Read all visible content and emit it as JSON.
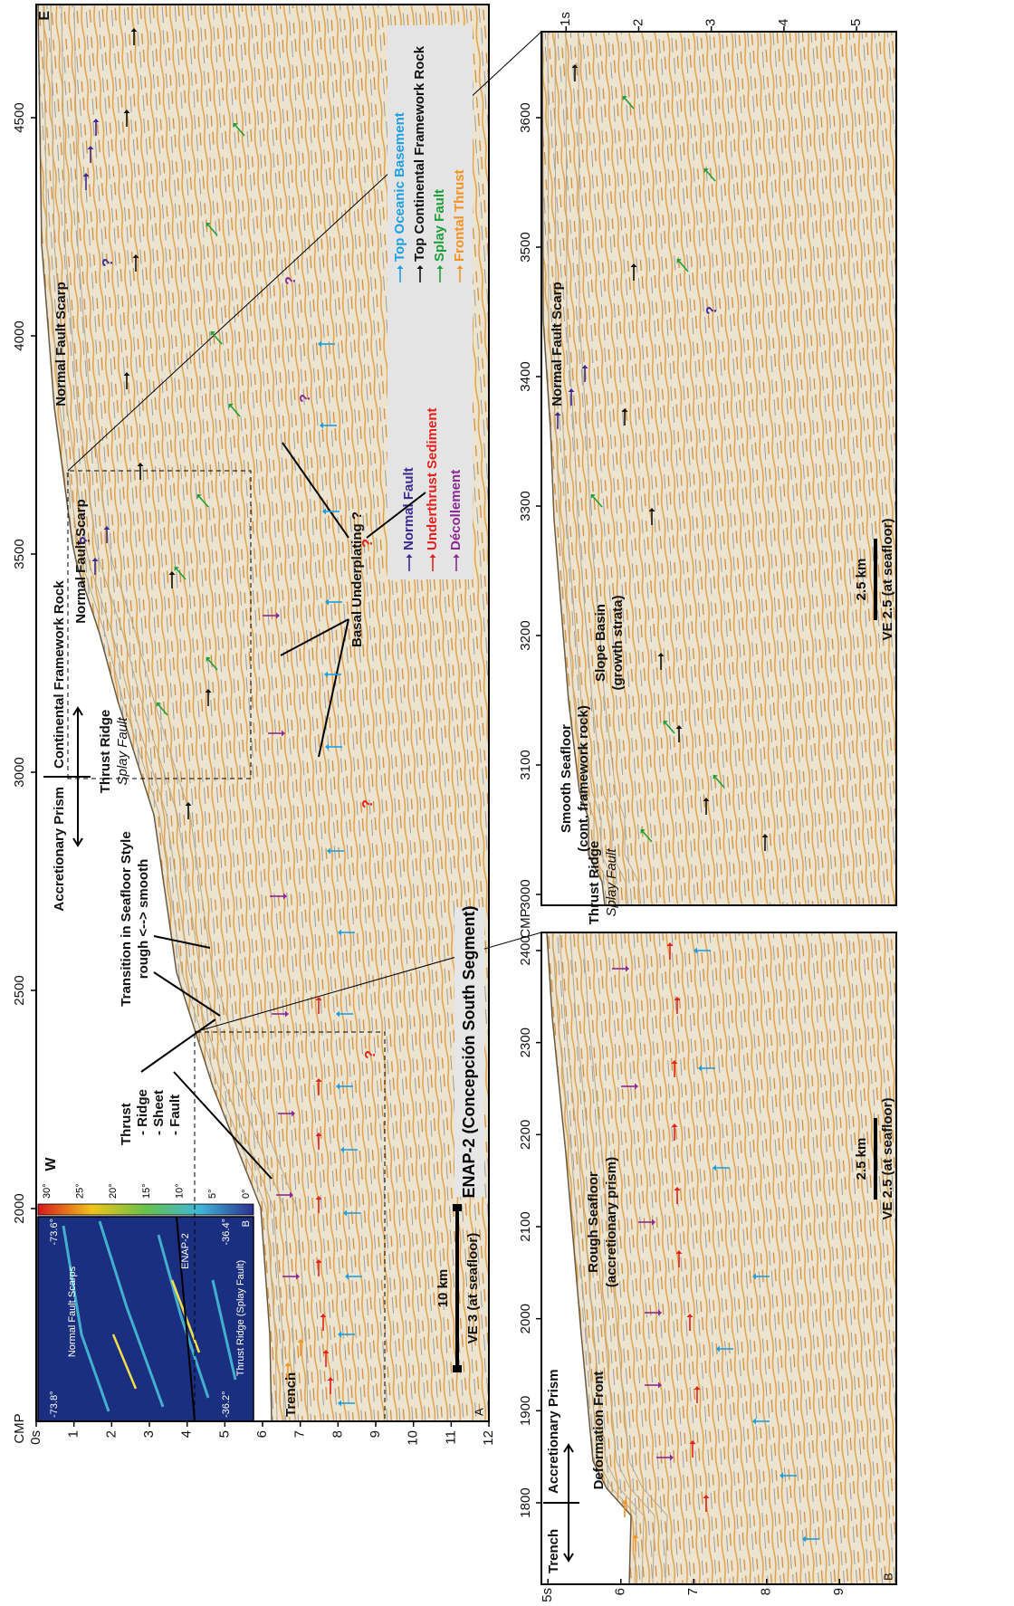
{
  "panel_a": {
    "cmp_label": "CMP",
    "cmp_ticks": [
      2000,
      2500,
      3000,
      3500,
      4000,
      4500
    ],
    "time_ticks": [
      {
        "value": 0,
        "label": "0s"
      },
      1,
      2,
      3,
      4,
      5,
      6,
      7,
      8,
      9,
      10,
      11,
      12
    ],
    "west": "W",
    "east": "E",
    "panel_letter": "A",
    "title": "ENAP-2 (Concepción South Segment)",
    "scale_bar": "10 km",
    "ve": "VE 3 (at seafloor)",
    "annotations": [
      "Normal Fault Scarp",
      "Normal Fault Scarp",
      "Continental Framework Rock",
      "Accretionary Prism",
      "Thrust Ridge",
      "Splay Fault",
      "Transition in Seafloor Style",
      "rough <--> smooth",
      "Thrust",
      "- Ridge",
      "- Sheet",
      "- Fault",
      "Basal Underplating ?",
      "Trench"
    ],
    "legend": [
      {
        "label": "Normal Fault",
        "color": "#3d2b8f"
      },
      {
        "label": "Underthrust Sediment",
        "color": "#e3211c"
      },
      {
        "label": "Décollement",
        "color": "#8b2a90"
      },
      {
        "label": "Top Oceanic Basement",
        "color": "#1e9fe0"
      },
      {
        "label": "Top Continental Framework Rock",
        "color": "#111111"
      },
      {
        "label": "Splay Fault",
        "color": "#1f9e3a"
      },
      {
        "label": "Frontal Thrust",
        "color": "#f39322"
      }
    ],
    "question_marks": [
      {
        "text": "?",
        "color": "#3d2b8f"
      },
      {
        "text": "?",
        "color": "#3d2b8f"
      },
      {
        "text": "?",
        "color": "#e3211c"
      },
      {
        "text": "?",
        "color": "#e3211c"
      },
      {
        "text": "?",
        "color": "#e3211c"
      },
      {
        "text": "?",
        "color": "#8b2a90"
      },
      {
        "text": "?",
        "color": "#8b2a90"
      }
    ]
  },
  "inset": {
    "labels": [
      "-73.8°",
      "-73.6°",
      "Normal Fault Scarps",
      "ENAP-2",
      "Thrust Ridge (Splay Fault)",
      "-36.2°",
      "-36.4°",
      "B"
    ]
  },
  "colorbar": {
    "labels": [
      "30°",
      "25°",
      "20°",
      "15°",
      "10°",
      "5°",
      "0°"
    ]
  },
  "panel_b": {
    "cmp_ticks": [
      1800,
      1900,
      2000,
      2100,
      2200,
      2300,
      2400
    ],
    "time_ticks": [
      {
        "value": 5,
        "label": "5s"
      },
      6,
      7,
      8,
      9
    ],
    "panel_letter": "B",
    "annotations": [
      "Trench",
      "Accretionary Prism",
      "Deformation Front",
      "Rough Seafloor",
      "(accretionary prism)"
    ],
    "scale_bar": "2.5 km",
    "ve": "VE 2.5 (at seafloor)"
  },
  "panel_c": {
    "cmp_label": "CMP",
    "cmp_ticks": [
      3000,
      3100,
      3200,
      3300,
      3400,
      3500,
      3600
    ],
    "time_ticks": [
      {
        "value": 1,
        "label": "1s"
      },
      2,
      3,
      4,
      5
    ],
    "annotations": [
      "Thrust Ridge",
      "Splay Fault",
      "Smooth Seafloor",
      "(cont. framework rock)",
      "Slope Basin",
      "(growth strata)",
      "Normal Fault Scarp"
    ],
    "scale_bar": "2.5 km",
    "ve": "VE 2.5 (at seafloor)",
    "question_marks": [
      {
        "text": "?",
        "color": "#3d2b8f"
      }
    ]
  }
}
